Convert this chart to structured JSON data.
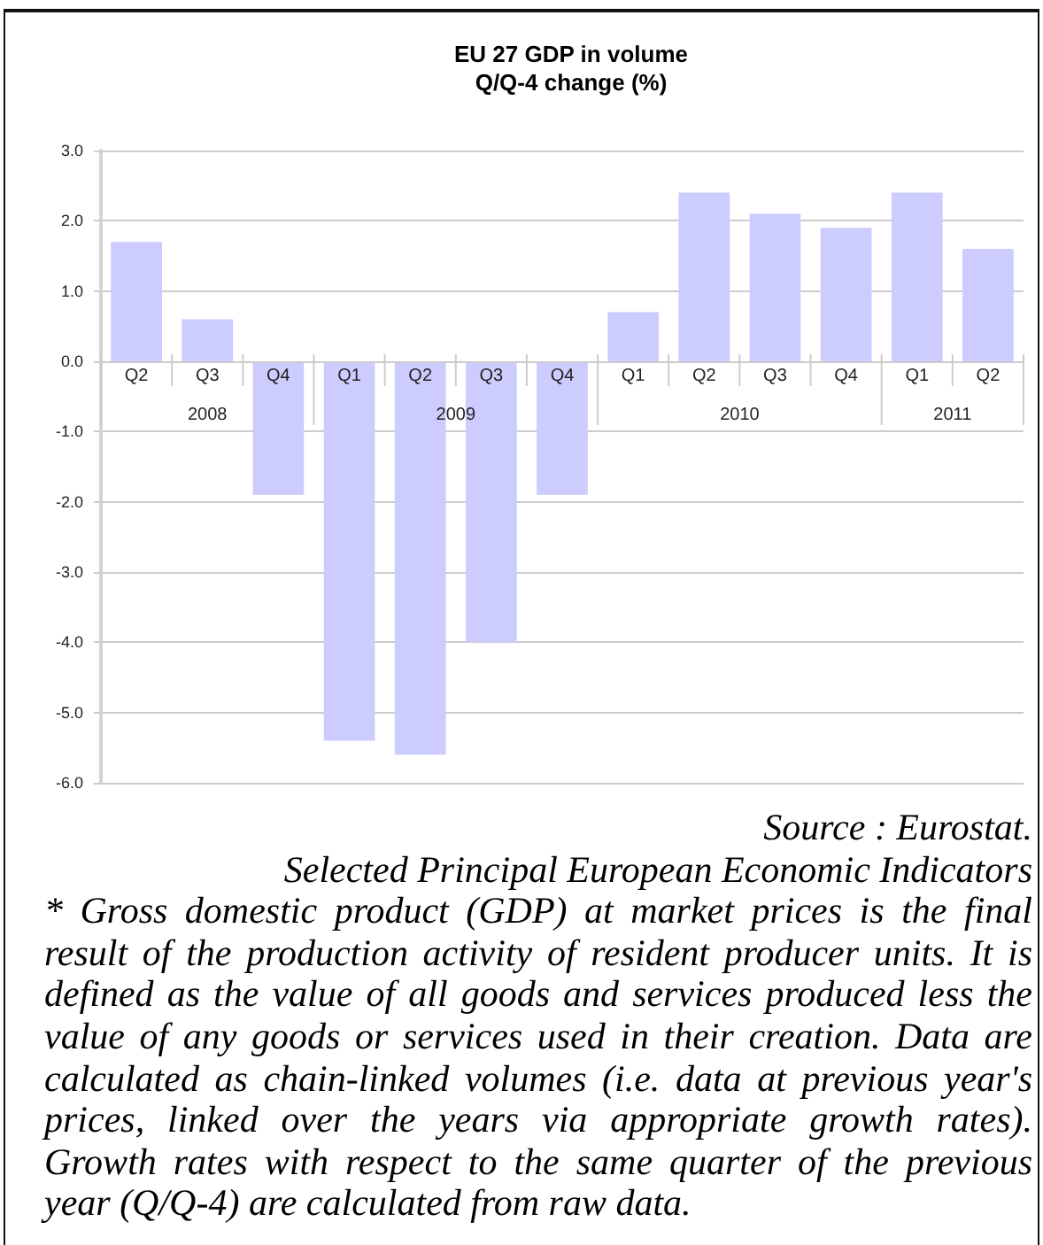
{
  "chart_data": {
    "type": "bar",
    "title": "EU 27 GDP in volume",
    "subtitle": "Q/Q-4 change (%)",
    "categories": [
      "Q2",
      "Q3",
      "Q4",
      "Q1",
      "Q2",
      "Q3",
      "Q4",
      "Q1",
      "Q2",
      "Q3",
      "Q4",
      "Q1",
      "Q2"
    ],
    "values": [
      1.7,
      0.6,
      -1.9,
      -5.4,
      -5.6,
      -4.0,
      -1.9,
      0.7,
      2.4,
      2.1,
      1.9,
      2.4,
      1.6
    ],
    "color": "#ccccff",
    "ylim": [
      -6,
      3
    ],
    "yticks": [
      {
        "value": -6,
        "label": "-6.0"
      },
      {
        "value": -5,
        "label": "-5.0"
      },
      {
        "value": -4,
        "label": "-4.0"
      },
      {
        "value": -3,
        "label": "-3.0"
      },
      {
        "value": -2,
        "label": "-2.0"
      },
      {
        "value": -1,
        "label": "-1.0"
      },
      {
        "value": 0,
        "label": "0.0"
      },
      {
        "value": 1,
        "label": "1.0"
      },
      {
        "value": 2,
        "label": "2.0"
      },
      {
        "value": 3,
        "label": "3.0"
      }
    ],
    "grid": "y",
    "annotations": [
      "2008",
      "2009",
      "2010",
      "2011",
      "Source : Eurostat.",
      "Selected Principal European Economic Indicators",
      "* Gross domestic product (GDP) at market prices is the final result of the production activity of resident producer units. It is defined as the value of all goods and services produced less the value of any goods or services used in their creation. Data are calculated as chain-linked volumes (i.e. data at previous year's prices, linked over the years via appropriate growth rates). Growth rates with respect to the same quarter of the previous year (Q/Q-4) are calculated from raw data."
    ]
  }
}
